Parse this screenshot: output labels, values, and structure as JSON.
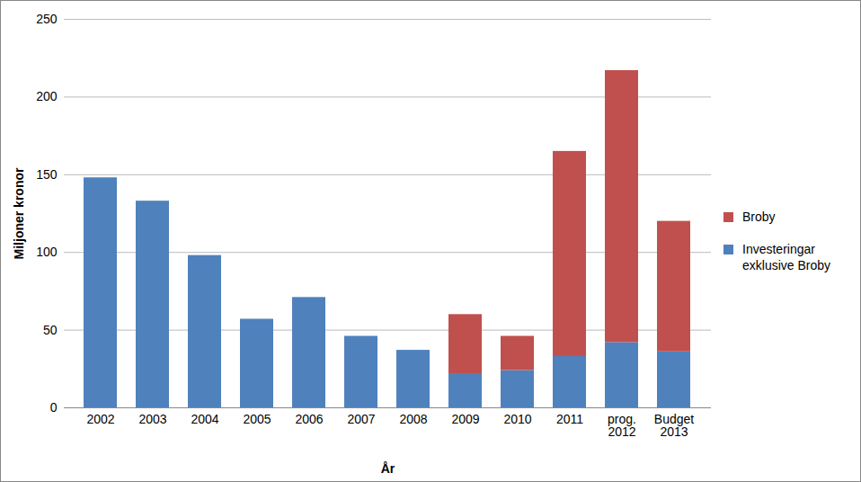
{
  "chart_data": {
    "type": "bar",
    "stacked": true,
    "grid": true,
    "legend": "right",
    "x_label": "År",
    "y_label": "Miljoner kronor",
    "categories": [
      "2002",
      "2003",
      "2004",
      "2005",
      "2006",
      "2007",
      "2008",
      "2009",
      "2010",
      "2011",
      "prog. 2012",
      "Budget 2013"
    ],
    "series": [
      {
        "name": "Investeringar exklusive Broby",
        "color": "#4F81BD",
        "values": [
          148,
          133,
          98,
          57,
          71,
          46,
          37,
          22,
          24,
          33,
          42,
          36
        ]
      },
      {
        "name": "Broby",
        "color": "#C0504D",
        "values": [
          null,
          null,
          null,
          null,
          null,
          null,
          null,
          38,
          22,
          132,
          175,
          84
        ]
      }
    ],
    "ylim": [
      0,
      250
    ],
    "yticks": [
      0,
      50,
      100,
      150,
      200,
      250
    ]
  }
}
